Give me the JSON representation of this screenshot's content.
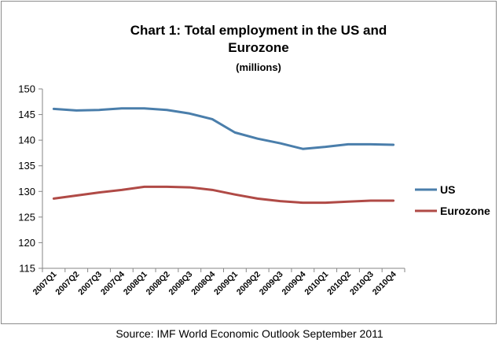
{
  "chart_data": {
    "type": "line",
    "title_line1": "Chart 1: Total employment in the US and",
    "title_line2": "Eurozone",
    "subtitle": "(millions)",
    "xlabel": "",
    "ylabel": "",
    "categories": [
      "2007Q1",
      "2007Q2",
      "2007Q3",
      "2007Q4",
      "2008Q1",
      "2008Q2",
      "2008Q3",
      "2008Q4",
      "2009Q1",
      "2009Q2",
      "2009Q3",
      "2009Q4",
      "2010Q1",
      "2010Q2",
      "2010Q3",
      "2010Q4"
    ],
    "ylim": [
      115,
      150
    ],
    "yticks": [
      115,
      120,
      125,
      130,
      135,
      140,
      145,
      150
    ],
    "grid": false,
    "legend_position": "right",
    "series": [
      {
        "name": "US",
        "color": "#4a7eab",
        "values": [
          146.1,
          145.8,
          145.9,
          146.2,
          146.2,
          145.9,
          145.2,
          144.1,
          141.5,
          140.3,
          139.4,
          138.3,
          138.7,
          139.2,
          139.2,
          139.1
        ]
      },
      {
        "name": "Eurozone",
        "color": "#b04a46",
        "values": [
          128.6,
          129.2,
          129.8,
          130.3,
          130.9,
          130.9,
          130.8,
          130.3,
          129.4,
          128.6,
          128.1,
          127.8,
          127.8,
          128.0,
          128.2,
          128.2
        ]
      }
    ]
  },
  "source": "Source: IMF World Economic Outlook September 2011"
}
